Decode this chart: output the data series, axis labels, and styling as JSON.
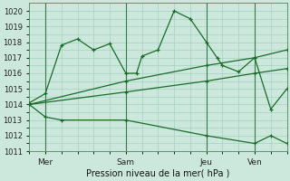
{
  "bg_color": "#cce8dc",
  "grid_color": "#99ccbb",
  "line_color": "#1a6b2a",
  "vline_color": "#3a7a4a",
  "xlabel_text": "Pression niveau de la mer( hPa )",
  "ylim": [
    1011,
    1020.5
  ],
  "yticks": [
    1011,
    1012,
    1013,
    1014,
    1015,
    1016,
    1017,
    1018,
    1019,
    1020
  ],
  "xlim": [
    0,
    96
  ],
  "xtick_positions": [
    6,
    36,
    66,
    84
  ],
  "xtick_labels": [
    "Mer",
    "Sam",
    "Jeu",
    "Ven"
  ],
  "vlines": [
    6,
    36,
    66,
    84
  ],
  "series": [
    {
      "x": [
        0,
        6,
        12,
        18,
        24,
        30,
        36,
        40,
        42,
        48,
        54,
        60,
        66,
        70,
        72,
        78,
        84,
        90,
        96
      ],
      "y": [
        1014.1,
        1014.7,
        1017.8,
        1018.2,
        1017.5,
        1017.9,
        1016.0,
        1016.0,
        1017.1,
        1017.5,
        1020.0,
        1019.5,
        1018.0,
        1017.0,
        1016.5,
        1016.1,
        1017.0,
        1013.7,
        1015.0
      ]
    },
    {
      "x": [
        0,
        36,
        66,
        84,
        96
      ],
      "y": [
        1014.0,
        1015.5,
        1016.5,
        1017.0,
        1017.5
      ]
    },
    {
      "x": [
        0,
        36,
        66,
        84,
        96
      ],
      "y": [
        1014.0,
        1014.8,
        1015.5,
        1016.0,
        1016.3
      ]
    },
    {
      "x": [
        0,
        6,
        12,
        36,
        66,
        84,
        90,
        96
      ],
      "y": [
        1014.0,
        1013.2,
        1013.0,
        1013.0,
        1012.0,
        1011.5,
        1012.0,
        1011.5
      ]
    }
  ]
}
